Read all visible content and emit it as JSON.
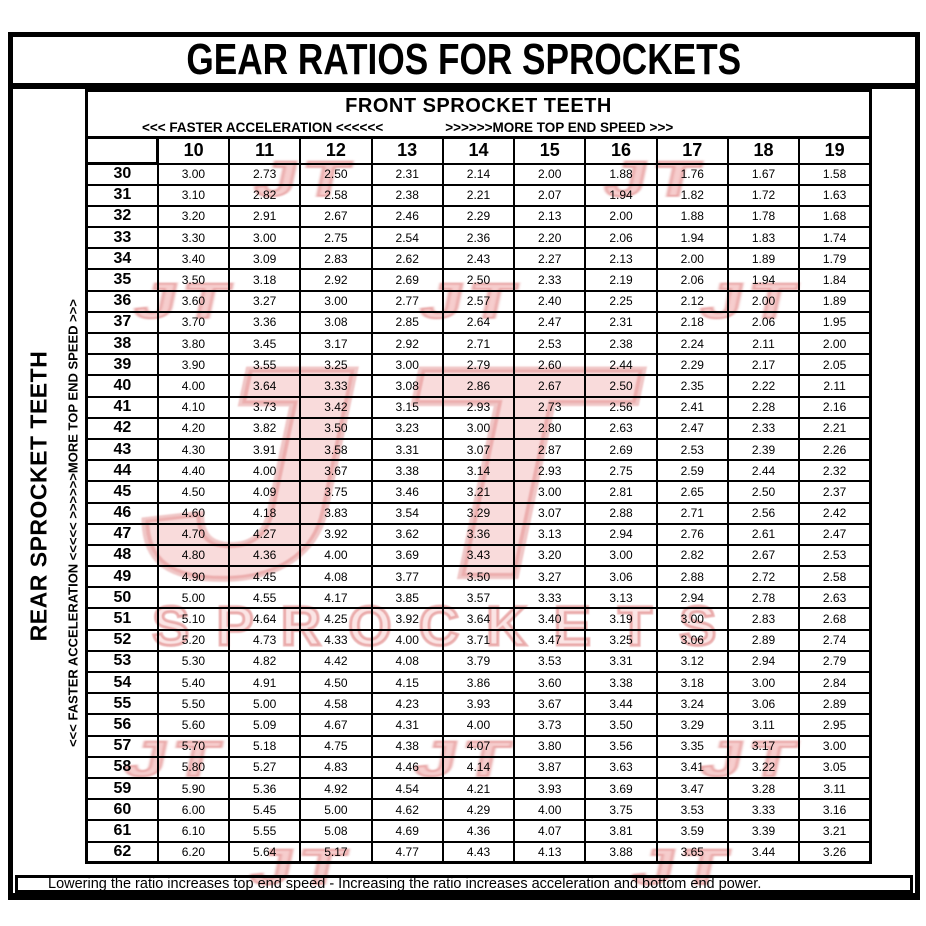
{
  "title": "GEAR RATIOS FOR SPROCKETS",
  "header": {
    "front_label": "FRONT SPROCKET TEETH",
    "accel_label": "<<< FASTER  ACCELERATION <<<<<<",
    "speed_label": ">>>>>>MORE TOP END SPEED >>>"
  },
  "side": {
    "rear_label": "REAR SPROCKET TEETH",
    "accel_speed_label": "<<< FASTER  ACCELERATION <<<<<      >>>>>>MORE TOP END SPEED >>>"
  },
  "footer": {
    "note": "Lowering the ratio increases top end speed - Increasing the ratio increases acceleration and bottom end power."
  },
  "watermark": {
    "logo_text": "JT",
    "text": "SPROCKETS",
    "color": "#d94f4f"
  },
  "chart_data": {
    "type": "table",
    "x_title": "FRONT SPROCKET TEETH",
    "y_title": "REAR SPROCKET TEETH",
    "columns": [
      "10",
      "11",
      "12",
      "13",
      "14",
      "15",
      "16",
      "17",
      "18",
      "19"
    ],
    "rows": [
      {
        "rear": "30",
        "values": [
          "3.00",
          "2.73",
          "2.50",
          "2.31",
          "2.14",
          "2.00",
          "1.88",
          "1.76",
          "1.67",
          "1.58"
        ]
      },
      {
        "rear": "31",
        "values": [
          "3.10",
          "2.82",
          "2.58",
          "2.38",
          "2.21",
          "2.07",
          "1.94",
          "1.82",
          "1.72",
          "1.63"
        ]
      },
      {
        "rear": "32",
        "values": [
          "3.20",
          "2.91",
          "2.67",
          "2.46",
          "2.29",
          "2.13",
          "2.00",
          "1.88",
          "1.78",
          "1.68"
        ]
      },
      {
        "rear": "33",
        "values": [
          "3.30",
          "3.00",
          "2.75",
          "2.54",
          "2.36",
          "2.20",
          "2.06",
          "1.94",
          "1.83",
          "1.74"
        ]
      },
      {
        "rear": "34",
        "values": [
          "3.40",
          "3.09",
          "2.83",
          "2.62",
          "2.43",
          "2.27",
          "2.13",
          "2.00",
          "1.89",
          "1.79"
        ]
      },
      {
        "rear": "35",
        "values": [
          "3.50",
          "3.18",
          "2.92",
          "2.69",
          "2.50",
          "2.33",
          "2.19",
          "2.06",
          "1.94",
          "1.84"
        ]
      },
      {
        "rear": "36",
        "values": [
          "3.60",
          "3.27",
          "3.00",
          "2.77",
          "2.57",
          "2.40",
          "2.25",
          "2.12",
          "2.00",
          "1.89"
        ]
      },
      {
        "rear": "37",
        "values": [
          "3.70",
          "3.36",
          "3.08",
          "2.85",
          "2.64",
          "2.47",
          "2.31",
          "2.18",
          "2.06",
          "1.95"
        ]
      },
      {
        "rear": "38",
        "values": [
          "3.80",
          "3.45",
          "3.17",
          "2.92",
          "2.71",
          "2.53",
          "2.38",
          "2.24",
          "2.11",
          "2.00"
        ]
      },
      {
        "rear": "39",
        "values": [
          "3.90",
          "3.55",
          "3.25",
          "3.00",
          "2.79",
          "2.60",
          "2.44",
          "2.29",
          "2.17",
          "2.05"
        ]
      },
      {
        "rear": "40",
        "values": [
          "4.00",
          "3.64",
          "3.33",
          "3.08",
          "2.86",
          "2.67",
          "2.50",
          "2.35",
          "2.22",
          "2.11"
        ]
      },
      {
        "rear": "41",
        "values": [
          "4.10",
          "3.73",
          "3.42",
          "3.15",
          "2.93",
          "2.73",
          "2.56",
          "2.41",
          "2.28",
          "2.16"
        ]
      },
      {
        "rear": "42",
        "values": [
          "4.20",
          "3.82",
          "3.50",
          "3.23",
          "3.00",
          "2.80",
          "2.63",
          "2.47",
          "2.33",
          "2.21"
        ]
      },
      {
        "rear": "43",
        "values": [
          "4.30",
          "3.91",
          "3.58",
          "3.31",
          "3.07",
          "2.87",
          "2.69",
          "2.53",
          "2.39",
          "2.26"
        ]
      },
      {
        "rear": "44",
        "values": [
          "4.40",
          "4.00",
          "3.67",
          "3.38",
          "3.14",
          "2.93",
          "2.75",
          "2.59",
          "2.44",
          "2.32"
        ]
      },
      {
        "rear": "45",
        "values": [
          "4.50",
          "4.09",
          "3.75",
          "3.46",
          "3.21",
          "3.00",
          "2.81",
          "2.65",
          "2.50",
          "2.37"
        ]
      },
      {
        "rear": "46",
        "values": [
          "4.60",
          "4.18",
          "3.83",
          "3.54",
          "3.29",
          "3.07",
          "2.88",
          "2.71",
          "2.56",
          "2.42"
        ]
      },
      {
        "rear": "47",
        "values": [
          "4.70",
          "4.27",
          "3.92",
          "3.62",
          "3.36",
          "3.13",
          "2.94",
          "2.76",
          "2.61",
          "2.47"
        ]
      },
      {
        "rear": "48",
        "values": [
          "4.80",
          "4.36",
          "4.00",
          "3.69",
          "3.43",
          "3.20",
          "3.00",
          "2.82",
          "2.67",
          "2.53"
        ]
      },
      {
        "rear": "49",
        "values": [
          "4.90",
          "4.45",
          "4.08",
          "3.77",
          "3.50",
          "3.27",
          "3.06",
          "2.88",
          "2.72",
          "2.58"
        ]
      },
      {
        "rear": "50",
        "values": [
          "5.00",
          "4.55",
          "4.17",
          "3.85",
          "3.57",
          "3.33",
          "3.13",
          "2.94",
          "2.78",
          "2.63"
        ]
      },
      {
        "rear": "51",
        "values": [
          "5.10",
          "4.64",
          "4.25",
          "3.92",
          "3.64",
          "3.40",
          "3.19",
          "3.00",
          "2.83",
          "2.68"
        ]
      },
      {
        "rear": "52",
        "values": [
          "5.20",
          "4.73",
          "4.33",
          "4.00",
          "3.71",
          "3.47",
          "3.25",
          "3.06",
          "2.89",
          "2.74"
        ]
      },
      {
        "rear": "53",
        "values": [
          "5.30",
          "4.82",
          "4.42",
          "4.08",
          "3.79",
          "3.53",
          "3.31",
          "3.12",
          "2.94",
          "2.79"
        ]
      },
      {
        "rear": "54",
        "values": [
          "5.40",
          "4.91",
          "4.50",
          "4.15",
          "3.86",
          "3.60",
          "3.38",
          "3.18",
          "3.00",
          "2.84"
        ]
      },
      {
        "rear": "55",
        "values": [
          "5.50",
          "5.00",
          "4.58",
          "4.23",
          "3.93",
          "3.67",
          "3.44",
          "3.24",
          "3.06",
          "2.89"
        ]
      },
      {
        "rear": "56",
        "values": [
          "5.60",
          "5.09",
          "4.67",
          "4.31",
          "4.00",
          "3.73",
          "3.50",
          "3.29",
          "3.11",
          "2.95"
        ]
      },
      {
        "rear": "57",
        "values": [
          "5.70",
          "5.18",
          "4.75",
          "4.38",
          "4.07",
          "3.80",
          "3.56",
          "3.35",
          "3.17",
          "3.00"
        ]
      },
      {
        "rear": "58",
        "values": [
          "5.80",
          "5.27",
          "4.83",
          "4.46",
          "4.14",
          "3.87",
          "3.63",
          "3.41",
          "3.22",
          "3.05"
        ]
      },
      {
        "rear": "59",
        "values": [
          "5.90",
          "5.36",
          "4.92",
          "4.54",
          "4.21",
          "3.93",
          "3.69",
          "3.47",
          "3.28",
          "3.11"
        ]
      },
      {
        "rear": "60",
        "values": [
          "6.00",
          "5.45",
          "5.00",
          "4.62",
          "4.29",
          "4.00",
          "3.75",
          "3.53",
          "3.33",
          "3.16"
        ]
      },
      {
        "rear": "61",
        "values": [
          "6.10",
          "5.55",
          "5.08",
          "4.69",
          "4.36",
          "4.07",
          "3.81",
          "3.59",
          "3.39",
          "3.21"
        ]
      },
      {
        "rear": "62",
        "values": [
          "6.20",
          "5.64",
          "5.17",
          "4.77",
          "4.43",
          "4.13",
          "3.88",
          "3.65",
          "3.44",
          "3.26"
        ]
      }
    ]
  }
}
